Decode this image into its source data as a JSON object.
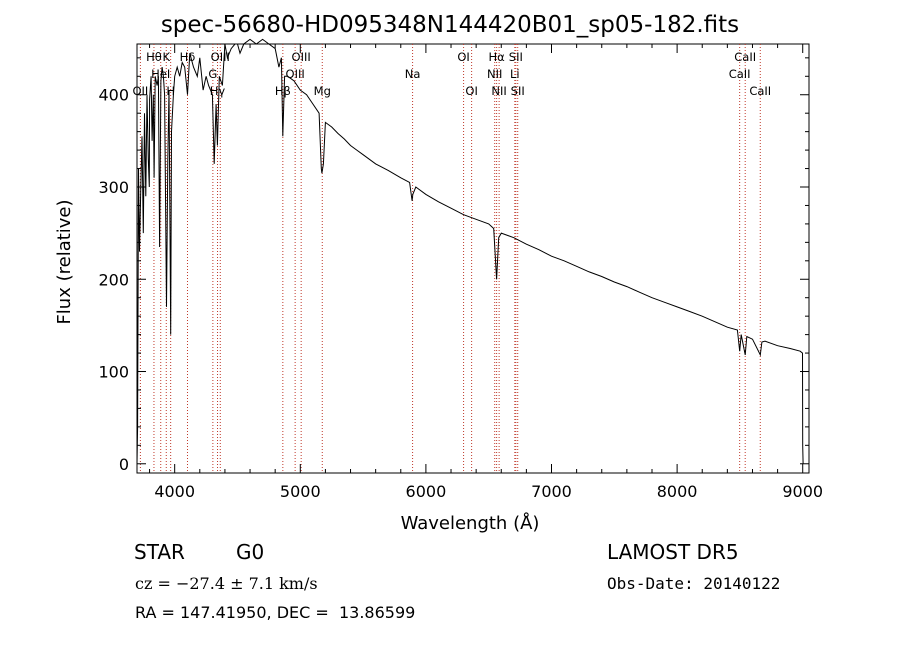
{
  "chart_data": {
    "type": "line",
    "title": "spec-56680-HD095348N144420B01_sp05-182.fits",
    "xlabel": "Wavelength (Å)",
    "ylabel": "Flux (relative)",
    "xlim": [
      3700,
      9050
    ],
    "ylim": [
      -10,
      455
    ],
    "xticks": [
      4000,
      5000,
      6000,
      7000,
      8000,
      9000
    ],
    "yticks": [
      0,
      100,
      200,
      300,
      400
    ],
    "grid": false,
    "series": [
      {
        "points": [
          [
            3700,
            0
          ],
          [
            3705,
            40
          ],
          [
            3712,
            320
          ],
          [
            3720,
            230
          ],
          [
            3730,
            300
          ],
          [
            3740,
            355
          ],
          [
            3750,
            250
          ],
          [
            3760,
            380
          ],
          [
            3770,
            290
          ],
          [
            3780,
            400
          ],
          [
            3790,
            330
          ],
          [
            3798,
            300
          ],
          [
            3800,
            395
          ],
          [
            3812,
            420
          ],
          [
            3820,
            350
          ],
          [
            3830,
            400
          ],
          [
            3836,
            310
          ],
          [
            3845,
            420
          ],
          [
            3860,
            410
          ],
          [
            3870,
            420
          ],
          [
            3880,
            235
          ],
          [
            3890,
            415
          ],
          [
            3900,
            430
          ],
          [
            3910,
            420
          ],
          [
            3920,
            400
          ],
          [
            3935,
            170
          ],
          [
            3945,
            330
          ],
          [
            3955,
            405
          ],
          [
            3960,
            300
          ],
          [
            3968,
            140
          ],
          [
            3975,
            360
          ],
          [
            3990,
            400
          ],
          [
            4000,
            420
          ],
          [
            4020,
            430
          ],
          [
            4040,
            420
          ],
          [
            4060,
            435
          ],
          [
            4080,
            430
          ],
          [
            4102,
            400
          ],
          [
            4120,
            445
          ],
          [
            4150,
            430
          ],
          [
            4180,
            420
          ],
          [
            4200,
            440
          ],
          [
            4226,
            405
          ],
          [
            4250,
            420
          ],
          [
            4270,
            410
          ],
          [
            4300,
            400
          ],
          [
            4315,
            325
          ],
          [
            4330,
            390
          ],
          [
            4340,
            345
          ],
          [
            4355,
            420
          ],
          [
            4380,
            410
          ],
          [
            4400,
            455
          ],
          [
            4420,
            440
          ],
          [
            4450,
            450
          ],
          [
            4480,
            455
          ],
          [
            4500,
            455
          ],
          [
            4520,
            445
          ],
          [
            4550,
            455
          ],
          [
            4600,
            460
          ],
          [
            4650,
            455
          ],
          [
            4700,
            460
          ],
          [
            4750,
            455
          ],
          [
            4800,
            450
          ],
          [
            4830,
            430
          ],
          [
            4850,
            440
          ],
          [
            4861,
            355
          ],
          [
            4875,
            420
          ],
          [
            4900,
            420
          ],
          [
            4950,
            415
          ],
          [
            5000,
            405
          ],
          [
            5050,
            400
          ],
          [
            5100,
            390
          ],
          [
            5150,
            380
          ],
          [
            5167,
            320
          ],
          [
            5172,
            315
          ],
          [
            5184,
            325
          ],
          [
            5200,
            370
          ],
          [
            5250,
            365
          ],
          [
            5300,
            358
          ],
          [
            5350,
            352
          ],
          [
            5400,
            345
          ],
          [
            5450,
            340
          ],
          [
            5500,
            335
          ],
          [
            5600,
            325
          ],
          [
            5700,
            318
          ],
          [
            5800,
            310
          ],
          [
            5870,
            305
          ],
          [
            5890,
            285
          ],
          [
            5896,
            292
          ],
          [
            5920,
            300
          ],
          [
            6000,
            292
          ],
          [
            6100,
            284
          ],
          [
            6200,
            277
          ],
          [
            6300,
            270
          ],
          [
            6400,
            265
          ],
          [
            6500,
            260
          ],
          [
            6540,
            255
          ],
          [
            6563,
            200
          ],
          [
            6580,
            245
          ],
          [
            6600,
            250
          ],
          [
            6700,
            245
          ],
          [
            6800,
            238
          ],
          [
            6900,
            232
          ],
          [
            7000,
            225
          ],
          [
            7100,
            220
          ],
          [
            7200,
            214
          ],
          [
            7300,
            208
          ],
          [
            7400,
            203
          ],
          [
            7500,
            197
          ],
          [
            7600,
            192
          ],
          [
            7700,
            186
          ],
          [
            7800,
            180
          ],
          [
            7900,
            175
          ],
          [
            8000,
            170
          ],
          [
            8100,
            165
          ],
          [
            8200,
            160
          ],
          [
            8300,
            154
          ],
          [
            8400,
            148
          ],
          [
            8480,
            145
          ],
          [
            8498,
            122
          ],
          [
            8510,
            140
          ],
          [
            8542,
            118
          ],
          [
            8555,
            138
          ],
          [
            8600,
            135
          ],
          [
            8662,
            118
          ],
          [
            8675,
            132
          ],
          [
            8700,
            133
          ],
          [
            8800,
            128
          ],
          [
            8900,
            125
          ],
          [
            8980,
            122
          ],
          [
            8998,
            120
          ],
          [
            9000,
            20
          ],
          [
            9003,
            0
          ]
        ]
      }
    ],
    "line_markers": [
      {
        "wavelength": 3727,
        "labels": [
          "OII"
        ],
        "tier": 3
      },
      {
        "wavelength": 3835,
        "labels": [
          "Hθ"
        ],
        "tier": 1
      },
      {
        "wavelength": 3889,
        "labels": [
          "HeI"
        ],
        "tier": 2
      },
      {
        "wavelength": 3933,
        "labels": [
          "K"
        ],
        "tier": 1
      },
      {
        "wavelength": 3968,
        "labels": [
          "H"
        ],
        "tier": 3
      },
      {
        "wavelength": 4102,
        "labels": [
          "Hδ"
        ],
        "tier": 1
      },
      {
        "wavelength": 4304,
        "labels": [
          "G"
        ],
        "tier": 2
      },
      {
        "wavelength": 4341,
        "labels": [
          "Hγ"
        ],
        "tier": 3
      },
      {
        "wavelength": 4363,
        "labels": [
          "OIII"
        ],
        "tier": 1
      },
      {
        "wavelength": 4861,
        "labels": [
          "Hβ"
        ],
        "tier": 3
      },
      {
        "wavelength": 4959,
        "labels": [
          "OIII"
        ],
        "tier": 2
      },
      {
        "wavelength": 5007,
        "labels": [
          "OIII"
        ],
        "tier": 1
      },
      {
        "wavelength": 5175,
        "labels": [
          "Mg"
        ],
        "tier": 3
      },
      {
        "wavelength": 5894,
        "labels": [
          "Na"
        ],
        "tier": 2
      },
      {
        "wavelength": 6300,
        "labels": [
          "OI"
        ],
        "tier": 1
      },
      {
        "wavelength": 6364,
        "labels": [
          "OI"
        ],
        "tier": 3
      },
      {
        "wavelength": 6548,
        "labels": [
          "NII"
        ],
        "tier": 2
      },
      {
        "wavelength": 6563,
        "labels": [
          "Hα"
        ],
        "tier": 1
      },
      {
        "wavelength": 6583,
        "labels": [
          "NII"
        ],
        "tier": 3
      },
      {
        "wavelength": 6708,
        "labels": [
          "Li"
        ],
        "tier": 2
      },
      {
        "wavelength": 6716,
        "labels": [
          "SII"
        ],
        "tier": 1
      },
      {
        "wavelength": 6731,
        "labels": [
          "SII"
        ],
        "tier": 3
      },
      {
        "wavelength": 8498,
        "labels": [
          "CaII"
        ],
        "tier": 2
      },
      {
        "wavelength": 8542,
        "labels": [
          "CaII"
        ],
        "tier": 1
      },
      {
        "wavelength": 8662,
        "labels": [
          "CaII"
        ],
        "tier": 3
      }
    ]
  },
  "info": {
    "class_label": "STAR",
    "subclass": "G0",
    "survey": "LAMOST DR5",
    "redshift": "cz = −27.4 ± 7.1 km/s",
    "obs_date": "Obs-Date: 20140122",
    "coords": "RA = 147.41950, DEC =  13.86599"
  },
  "colors": {
    "spectrum": "#000000",
    "marker_line": "#c0392b",
    "text": "#000000"
  }
}
